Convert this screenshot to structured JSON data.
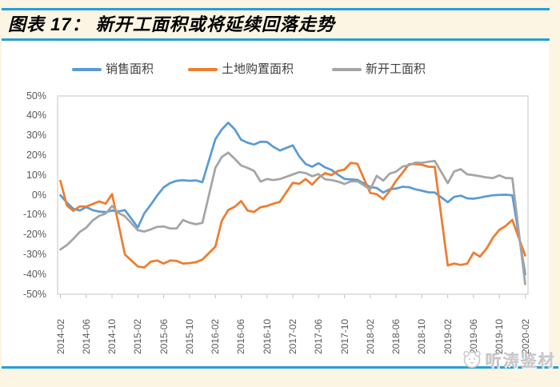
{
  "page": {
    "title": "图表 17：  新开工面积或将延续回落走势",
    "watermark": "听涛鉴材",
    "colors": {
      "accent_rule": "#23A0DB",
      "background": "#FCF5E3",
      "panel": "#FFFFFF",
      "plot_border": "#D9D9D9",
      "tick": "#BFBFBF",
      "axis_label": "#595959",
      "legend_text": "#404040",
      "watermark_gray": "#C9C9C9"
    }
  },
  "chart_data": {
    "type": "line",
    "title": "新开工面积或将延续回落走势",
    "xlabel": "",
    "ylabel": "",
    "grid": false,
    "legend_position": "top",
    "ylim": [
      -50,
      50
    ],
    "y_tick_labels": [
      "50%",
      "40%",
      "30%",
      "20%",
      "10%",
      "0%",
      "-10%",
      "-20%",
      "-30%",
      "-40%",
      "-50%"
    ],
    "x_tick_labels": [
      "2014-02",
      "2014-06",
      "2014-10",
      "2015-02",
      "2015-06",
      "2015-10",
      "2016-02",
      "2016-06",
      "2016-10",
      "2017-02",
      "2017-06",
      "2017-10",
      "2018-02",
      "2018-06",
      "2018-10",
      "2019-02",
      "2019-06",
      "2019-10",
      "2020-02"
    ],
    "x": [
      "2014-02",
      "2014-03",
      "2014-04",
      "2014-05",
      "2014-06",
      "2014-07",
      "2014-08",
      "2014-09",
      "2014-10",
      "2014-11",
      "2014-12",
      "2015-02",
      "2015-03",
      "2015-04",
      "2015-05",
      "2015-06",
      "2015-07",
      "2015-08",
      "2015-09",
      "2015-10",
      "2015-11",
      "2015-12",
      "2016-02",
      "2016-03",
      "2016-04",
      "2016-05",
      "2016-06",
      "2016-07",
      "2016-08",
      "2016-09",
      "2016-10",
      "2016-11",
      "2016-12",
      "2017-02",
      "2017-03",
      "2017-04",
      "2017-05",
      "2017-06",
      "2017-07",
      "2017-08",
      "2017-09",
      "2017-10",
      "2017-11",
      "2017-12",
      "2018-02",
      "2018-03",
      "2018-04",
      "2018-05",
      "2018-06",
      "2018-07",
      "2018-08",
      "2018-09",
      "2018-10",
      "2018-11",
      "2018-12",
      "2019-02",
      "2019-03",
      "2019-04",
      "2019-05",
      "2019-06",
      "2019-07",
      "2019-08",
      "2019-09",
      "2019-10",
      "2019-11",
      "2019-12",
      "2020-02"
    ],
    "series": [
      {
        "name": "销售面积",
        "color": "#5B9BD5",
        "values": [
          -0.1,
          -3.8,
          -6.9,
          -7.8,
          -6.0,
          -7.6,
          -8.3,
          -8.6,
          -7.8,
          -8.2,
          -7.6,
          -16.3,
          -9.2,
          -4.8,
          -0.2,
          3.9,
          6.1,
          7.2,
          7.5,
          7.2,
          7.4,
          6.5,
          28.2,
          33.1,
          36.5,
          33.2,
          27.9,
          26.4,
          25.5,
          26.9,
          26.8,
          24.3,
          22.5,
          25.1,
          19.5,
          15.7,
          14.3,
          16.1,
          14.0,
          12.7,
          10.3,
          8.2,
          7.9,
          7.7,
          4.1,
          3.6,
          1.3,
          2.9,
          3.3,
          4.2,
          4.0,
          2.9,
          2.2,
          1.4,
          1.3,
          -3.6,
          -0.9,
          -0.3,
          -1.6,
          -1.8,
          -1.3,
          -0.6,
          -0.1,
          0.1,
          0.2,
          -0.1,
          -39.9
        ]
      },
      {
        "name": "土地购置面积",
        "color": "#ED7D31",
        "values": [
          7.2,
          -5.2,
          -7.9,
          -5.7,
          -5.8,
          -4.5,
          -3.2,
          -4.3,
          0.5,
          -14.5,
          -30.0,
          -36.0,
          -36.5,
          -33.5,
          -33.0,
          -34.5,
          -33.0,
          -33.2,
          -34.5,
          -34.3,
          -33.8,
          -32.5,
          -26.0,
          -13.0,
          -7.5,
          -5.9,
          -3.0,
          -7.8,
          -8.5,
          -6.1,
          -5.5,
          -4.3,
          -3.4,
          6.2,
          5.7,
          8.1,
          5.3,
          8.8,
          11.1,
          10.1,
          12.2,
          12.9,
          16.3,
          15.8,
          1.1,
          0.5,
          -2.1,
          2.1,
          7.2,
          11.3,
          15.6,
          15.7,
          15.3,
          14.3,
          14.2,
          -35.5,
          -34.5,
          -35.2,
          -34.6,
          -29.0,
          -31.0,
          -27.0,
          -21.5,
          -17.5,
          -15.5,
          -12.5,
          -30.5
        ]
      },
      {
        "name": "新开工面积",
        "color": "#A5A5A5",
        "values": [
          -27.4,
          -25.2,
          -22.1,
          -18.6,
          -16.4,
          -12.8,
          -10.5,
          -9.3,
          -5.5,
          -9.0,
          -10.7,
          -17.7,
          -18.4,
          -17.3,
          -16.0,
          -15.8,
          -16.8,
          -16.8,
          -12.6,
          -13.9,
          -14.7,
          -14.0,
          13.7,
          19.2,
          21.4,
          18.3,
          14.9,
          13.7,
          12.2,
          6.8,
          8.1,
          7.6,
          8.1,
          10.4,
          11.6,
          11.1,
          9.5,
          10.6,
          8.0,
          7.6,
          6.8,
          5.6,
          6.9,
          7.0,
          2.9,
          9.7,
          7.3,
          10.8,
          11.8,
          14.4,
          15.1,
          16.4,
          16.3,
          16.8,
          17.2,
          6.0,
          11.9,
          13.1,
          10.5,
          10.1,
          9.5,
          8.9,
          8.6,
          10.0,
          8.6,
          8.5,
          -44.9
        ]
      }
    ]
  }
}
